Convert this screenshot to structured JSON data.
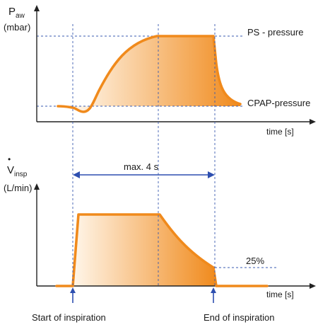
{
  "top_chart": {
    "y_label_main": "P",
    "y_label_sub": "aw",
    "y_unit": "(mbar)",
    "x_label": "time [s]",
    "levels": {
      "ps_label": "PS - pressure",
      "cpap_label": "CPAP-pressure"
    }
  },
  "bottom_chart": {
    "y_label_main": "V",
    "y_label_sub": "insp",
    "y_unit": "(L/min)",
    "x_label": "time [s]",
    "duration_label": "max. 4 s",
    "cutoff_label": "25%"
  },
  "markers": {
    "start_label": "Start of inspiration",
    "end_label": "End of inspiration"
  },
  "colors": {
    "curve": "#f08a1c",
    "fill_start": "#fff3e2",
    "fill_end": "#f08a1c",
    "guide": "#3a5bb0",
    "axis": "#222222"
  }
}
